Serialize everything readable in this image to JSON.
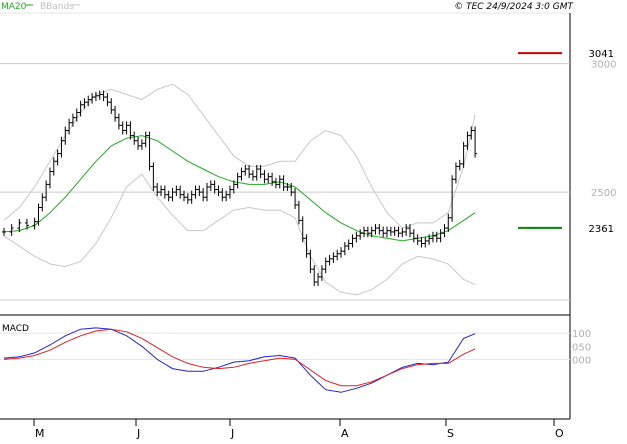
{
  "header": {
    "legend_ma": "MA20",
    "legend_bb": "BBands",
    "copyright": "© TEC 24/9/2024 3:0 GMT"
  },
  "colors": {
    "price": "#000000",
    "ma20": "#22aa22",
    "bbands": "#c8c8c8",
    "resistance": "#cc0000",
    "support": "#008800",
    "macd": "#2222cc",
    "signal": "#dd2222",
    "grid": "#cccccc",
    "axis_text": "#b0b0b0"
  },
  "chart_data": [
    {
      "type": "ohlc",
      "title": "",
      "ylim": [
        2080,
        3170
      ],
      "y_ticks": [
        "3000",
        "2500"
      ],
      "x_ticks": [
        "M",
        "J",
        "J",
        "A",
        "S",
        "O"
      ],
      "x_index_range": [
        0,
        140
      ],
      "legend": [
        "MA20",
        "BBands"
      ],
      "levels": [
        {
          "name": "resistance",
          "value": 3041,
          "label": "3041"
        },
        {
          "name": "support",
          "value": 2361,
          "label": "2361"
        }
      ],
      "price": [
        [
          0,
          2345
        ],
        [
          2,
          2360
        ],
        [
          4,
          2380
        ],
        [
          6,
          2370
        ],
        [
          8,
          2385
        ],
        [
          9,
          2440
        ],
        [
          10,
          2480
        ],
        [
          11,
          2530
        ],
        [
          12,
          2580
        ],
        [
          13,
          2620
        ],
        [
          14,
          2650
        ],
        [
          15,
          2700
        ],
        [
          16,
          2740
        ],
        [
          17,
          2770
        ],
        [
          18,
          2790
        ],
        [
          19,
          2810
        ],
        [
          20,
          2840
        ],
        [
          21,
          2850
        ],
        [
          22,
          2860
        ],
        [
          23,
          2870
        ],
        [
          24,
          2875
        ],
        [
          25,
          2880
        ],
        [
          26,
          2870
        ],
        [
          27,
          2850
        ],
        [
          28,
          2820
        ],
        [
          29,
          2790
        ],
        [
          30,
          2760
        ],
        [
          31,
          2740
        ],
        [
          32,
          2760
        ],
        [
          33,
          2720
        ],
        [
          34,
          2700
        ],
        [
          35,
          2680
        ],
        [
          36,
          2690
        ],
        [
          37,
          2720
        ],
        [
          38,
          2600
        ],
        [
          39,
          2520
        ],
        [
          40,
          2500
        ],
        [
          41,
          2510
        ],
        [
          42,
          2490
        ],
        [
          43,
          2480
        ],
        [
          44,
          2500
        ],
        [
          45,
          2510
        ],
        [
          46,
          2490
        ],
        [
          47,
          2480
        ],
        [
          48,
          2470
        ],
        [
          49,
          2490
        ],
        [
          50,
          2510
        ],
        [
          51,
          2500
        ],
        [
          52,
          2480
        ],
        [
          53,
          2520
        ],
        [
          54,
          2530
        ],
        [
          55,
          2510
        ],
        [
          56,
          2500
        ],
        [
          57,
          2480
        ],
        [
          58,
          2490
        ],
        [
          59,
          2510
        ],
        [
          60,
          2530
        ],
        [
          61,
          2560
        ],
        [
          62,
          2580
        ],
        [
          63,
          2590
        ],
        [
          64,
          2570
        ],
        [
          65,
          2560
        ],
        [
          66,
          2590
        ],
        [
          67,
          2570
        ],
        [
          68,
          2550
        ],
        [
          69,
          2560
        ],
        [
          70,
          2540
        ],
        [
          71,
          2530
        ],
        [
          72,
          2550
        ],
        [
          73,
          2520
        ],
        [
          74,
          2520
        ],
        [
          75,
          2500
        ],
        [
          76,
          2450
        ],
        [
          77,
          2390
        ],
        [
          78,
          2320
        ],
        [
          79,
          2260
        ],
        [
          80,
          2200
        ],
        [
          81,
          2150
        ],
        [
          82,
          2170
        ],
        [
          83,
          2200
        ],
        [
          84,
          2230
        ],
        [
          85,
          2240
        ],
        [
          86,
          2250
        ],
        [
          87,
          2260
        ],
        [
          88,
          2270
        ],
        [
          89,
          2290
        ],
        [
          90,
          2300
        ],
        [
          91,
          2320
        ],
        [
          92,
          2330
        ],
        [
          93,
          2340
        ],
        [
          94,
          2350
        ],
        [
          95,
          2340
        ],
        [
          96,
          2350
        ],
        [
          97,
          2360
        ],
        [
          98,
          2350
        ],
        [
          99,
          2340
        ],
        [
          100,
          2350
        ],
        [
          101,
          2345
        ],
        [
          102,
          2350
        ],
        [
          103,
          2340
        ],
        [
          104,
          2345
        ],
        [
          105,
          2360
        ],
        [
          106,
          2340
        ],
        [
          107,
          2320
        ],
        [
          108,
          2310
        ],
        [
          109,
          2300
        ],
        [
          110,
          2310
        ],
        [
          111,
          2320
        ],
        [
          112,
          2330
        ],
        [
          113,
          2320
        ],
        [
          114,
          2340
        ],
        [
          115,
          2360
        ],
        [
          116,
          2400
        ],
        [
          117,
          2550
        ],
        [
          118,
          2600
        ],
        [
          119,
          2610
        ],
        [
          120,
          2680
        ],
        [
          121,
          2720
        ],
        [
          122,
          2740
        ],
        [
          123,
          2650
        ]
      ],
      "ma20": [
        [
          0,
          2345
        ],
        [
          4,
          2350
        ],
        [
          8,
          2370
        ],
        [
          12,
          2420
        ],
        [
          16,
          2480
        ],
        [
          20,
          2550
        ],
        [
          24,
          2620
        ],
        [
          28,
          2680
        ],
        [
          32,
          2710
        ],
        [
          36,
          2720
        ],
        [
          40,
          2700
        ],
        [
          44,
          2660
        ],
        [
          48,
          2620
        ],
        [
          52,
          2590
        ],
        [
          56,
          2560
        ],
        [
          60,
          2540
        ],
        [
          64,
          2530
        ],
        [
          68,
          2530
        ],
        [
          72,
          2540
        ],
        [
          76,
          2520
        ],
        [
          80,
          2470
        ],
        [
          84,
          2420
        ],
        [
          88,
          2380
        ],
        [
          92,
          2350
        ],
        [
          96,
          2330
        ],
        [
          100,
          2320
        ],
        [
          104,
          2310
        ],
        [
          108,
          2320
        ],
        [
          112,
          2330
        ],
        [
          116,
          2350
        ],
        [
          120,
          2390
        ],
        [
          123,
          2420
        ]
      ],
      "bb_upper": [
        [
          0,
          2390
        ],
        [
          4,
          2440
        ],
        [
          8,
          2520
        ],
        [
          12,
          2620
        ],
        [
          16,
          2720
        ],
        [
          20,
          2810
        ],
        [
          24,
          2880
        ],
        [
          28,
          2900
        ],
        [
          32,
          2880
        ],
        [
          36,
          2860
        ],
        [
          40,
          2900
        ],
        [
          44,
          2920
        ],
        [
          48,
          2880
        ],
        [
          52,
          2800
        ],
        [
          56,
          2720
        ],
        [
          60,
          2640
        ],
        [
          64,
          2600
        ],
        [
          68,
          2600
        ],
        [
          72,
          2620
        ],
        [
          76,
          2620
        ],
        [
          80,
          2700
        ],
        [
          84,
          2740
        ],
        [
          88,
          2720
        ],
        [
          92,
          2640
        ],
        [
          96,
          2520
        ],
        [
          100,
          2420
        ],
        [
          104,
          2360
        ],
        [
          108,
          2380
        ],
        [
          112,
          2380
        ],
        [
          116,
          2420
        ],
        [
          120,
          2600
        ],
        [
          123,
          2800
        ]
      ],
      "bb_lower": [
        [
          0,
          2330
        ],
        [
          4,
          2290
        ],
        [
          8,
          2250
        ],
        [
          12,
          2220
        ],
        [
          16,
          2210
        ],
        [
          20,
          2230
        ],
        [
          24,
          2300
        ],
        [
          28,
          2400
        ],
        [
          32,
          2520
        ],
        [
          36,
          2570
        ],
        [
          40,
          2480
        ],
        [
          44,
          2410
        ],
        [
          48,
          2350
        ],
        [
          52,
          2350
        ],
        [
          56,
          2390
        ],
        [
          60,
          2430
        ],
        [
          64,
          2440
        ],
        [
          68,
          2430
        ],
        [
          72,
          2430
        ],
        [
          76,
          2400
        ],
        [
          80,
          2250
        ],
        [
          84,
          2150
        ],
        [
          88,
          2110
        ],
        [
          92,
          2100
        ],
        [
          96,
          2120
        ],
        [
          100,
          2160
        ],
        [
          104,
          2220
        ],
        [
          108,
          2250
        ],
        [
          112,
          2240
        ],
        [
          116,
          2220
        ],
        [
          120,
          2160
        ],
        [
          123,
          2140
        ]
      ]
    },
    {
      "type": "line",
      "title": "MACD",
      "ylim": [
        -200,
        150
      ],
      "y_ticks": [
        "100",
        "050",
        "000"
      ],
      "series": [
        {
          "name": "MACD",
          "color": "#2222cc",
          "points": [
            [
              0,
              5
            ],
            [
              4,
              10
            ],
            [
              8,
              25
            ],
            [
              12,
              55
            ],
            [
              16,
              90
            ],
            [
              20,
              115
            ],
            [
              24,
              120
            ],
            [
              28,
              115
            ],
            [
              32,
              90
            ],
            [
              36,
              50
            ],
            [
              40,
              0
            ],
            [
              44,
              -35
            ],
            [
              48,
              -45
            ],
            [
              52,
              -45
            ],
            [
              56,
              -30
            ],
            [
              60,
              -10
            ],
            [
              64,
              -5
            ],
            [
              68,
              10
            ],
            [
              72,
              15
            ],
            [
              76,
              5
            ],
            [
              80,
              -60
            ],
            [
              84,
              -115
            ],
            [
              88,
              -125
            ],
            [
              92,
              -110
            ],
            [
              96,
              -90
            ],
            [
              100,
              -60
            ],
            [
              104,
              -30
            ],
            [
              108,
              -15
            ],
            [
              112,
              -20
            ],
            [
              116,
              -10
            ],
            [
              120,
              80
            ],
            [
              123,
              98
            ]
          ]
        },
        {
          "name": "Signal",
          "color": "#dd2222",
          "points": [
            [
              0,
              0
            ],
            [
              4,
              5
            ],
            [
              8,
              15
            ],
            [
              12,
              35
            ],
            [
              16,
              65
            ],
            [
              20,
              90
            ],
            [
              24,
              108
            ],
            [
              28,
              115
            ],
            [
              32,
              105
            ],
            [
              36,
              80
            ],
            [
              40,
              45
            ],
            [
              44,
              10
            ],
            [
              48,
              -15
            ],
            [
              52,
              -30
            ],
            [
              56,
              -35
            ],
            [
              60,
              -30
            ],
            [
              64,
              -15
            ],
            [
              68,
              -5
            ],
            [
              72,
              5
            ],
            [
              76,
              0
            ],
            [
              80,
              -40
            ],
            [
              84,
              -80
            ],
            [
              88,
              -100
            ],
            [
              92,
              -100
            ],
            [
              96,
              -85
            ],
            [
              100,
              -60
            ],
            [
              104,
              -35
            ],
            [
              108,
              -20
            ],
            [
              112,
              -15
            ],
            [
              116,
              -15
            ],
            [
              120,
              20
            ],
            [
              123,
              40
            ]
          ]
        }
      ]
    }
  ]
}
